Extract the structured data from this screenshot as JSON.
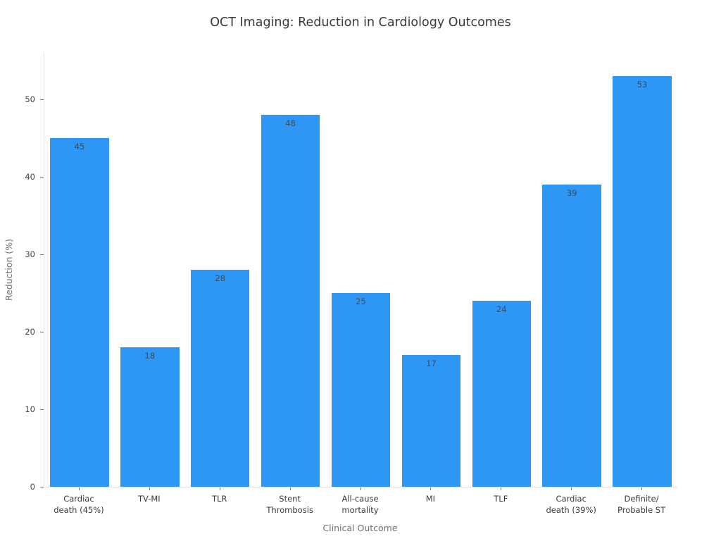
{
  "chart_data": {
    "type": "bar",
    "title": "OCT Imaging: Reduction in Cardiology Outcomes",
    "xlabel": "Clinical Outcome",
    "ylabel": "Reduction (%)",
    "categories": [
      "Cardiac\ndeath (45%)",
      "TV-MI",
      "TLR",
      "Stent\nThrombosis",
      "All-cause\nmortality",
      "MI",
      "TLF",
      "Cardiac\ndeath (39%)",
      "Definite/\nProbable ST"
    ],
    "values": [
      45,
      18,
      28,
      48,
      25,
      17,
      24,
      39,
      53
    ],
    "bar_labels": [
      "45",
      "18",
      "28",
      "48",
      "25",
      "17",
      "24",
      "39",
      "53"
    ],
    "yticks": [
      0,
      10,
      20,
      30,
      40,
      50
    ],
    "ylim": [
      0,
      56
    ],
    "grid": false,
    "legend": "none",
    "colors": {
      "background": "#ffffff",
      "bar": "#2e96f5",
      "value_label": "#3d4c5e",
      "tick_label": "#444444",
      "category_label": "#3a3a3a",
      "axis_title": "#707070",
      "title": "#3a3a3a",
      "axis_line": "#e2e2e2",
      "tick_mark": "#777777"
    }
  }
}
